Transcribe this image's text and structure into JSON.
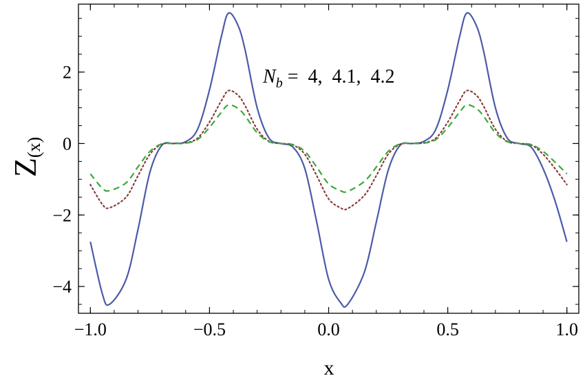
{
  "chart_data": {
    "type": "line",
    "xlabel": "x",
    "ylabel": "Z",
    "ylabel_sub": "(x)",
    "xlim": [
      -1.05,
      1.05
    ],
    "ylim": [
      -4.75,
      3.9
    ],
    "x_ticks": [
      -1.0,
      -0.5,
      0.0,
      0.5,
      1.0
    ],
    "x_tick_labels": [
      "−1.0",
      "−0.5",
      "0.0",
      "0.5",
      "1.0"
    ],
    "y_ticks": [
      -4,
      -2,
      0,
      2
    ],
    "y_tick_labels": [
      "−4",
      "−2",
      "0",
      "2"
    ],
    "annotation": {
      "symbol": "N",
      "subscript": "b",
      "text": " =  4,  4.1,  4.2"
    },
    "grid": false,
    "series": [
      {
        "style": "solid",
        "color": "#4a5aa8",
        "x": [
          -1.0,
          -0.95,
          -0.92,
          -0.85,
          -0.8,
          -0.75,
          -0.7,
          -0.65,
          -0.6,
          -0.55,
          -0.5,
          -0.45,
          -0.42,
          -0.38,
          -0.35,
          -0.3,
          -0.25,
          -0.2,
          -0.15,
          -0.1,
          -0.05,
          0.0,
          0.05,
          0.08,
          0.15,
          0.2,
          0.25,
          0.3,
          0.35,
          0.4,
          0.45,
          0.5,
          0.55,
          0.58,
          0.62,
          0.65,
          0.7,
          0.75,
          0.8,
          0.85,
          0.9,
          0.95,
          1.0
        ],
        "y": [
          -2.75,
          -4.2,
          -4.5,
          -3.8,
          -2.4,
          -0.8,
          -0.05,
          0.0,
          0.05,
          0.4,
          1.5,
          3.0,
          3.65,
          3.3,
          2.6,
          1.0,
          0.15,
          0.0,
          -0.1,
          -0.7,
          -2.2,
          -3.8,
          -4.45,
          -4.5,
          -3.6,
          -2.2,
          -0.75,
          -0.05,
          0.0,
          0.06,
          0.4,
          1.5,
          3.0,
          3.65,
          3.3,
          2.6,
          1.0,
          0.15,
          0.0,
          -0.1,
          -0.7,
          -1.6,
          -2.75
        ]
      },
      {
        "style": "dotted",
        "color": "#8b3a3a",
        "x": [
          -1.0,
          -0.95,
          -0.92,
          -0.85,
          -0.8,
          -0.75,
          -0.7,
          -0.65,
          -0.6,
          -0.55,
          -0.5,
          -0.45,
          -0.42,
          -0.38,
          -0.35,
          -0.3,
          -0.25,
          -0.2,
          -0.15,
          -0.1,
          -0.05,
          0.0,
          0.05,
          0.08,
          0.15,
          0.2,
          0.25,
          0.3,
          0.35,
          0.4,
          0.45,
          0.5,
          0.55,
          0.58,
          0.62,
          0.65,
          0.7,
          0.75,
          0.8,
          0.85,
          0.9,
          0.95,
          1.0
        ],
        "y": [
          -1.15,
          -1.7,
          -1.8,
          -1.5,
          -0.9,
          -0.3,
          -0.02,
          0.0,
          0.02,
          0.15,
          0.6,
          1.2,
          1.48,
          1.35,
          1.05,
          0.4,
          0.06,
          0.0,
          -0.04,
          -0.3,
          -0.9,
          -1.55,
          -1.8,
          -1.82,
          -1.45,
          -0.9,
          -0.3,
          -0.02,
          0.0,
          0.02,
          0.15,
          0.6,
          1.2,
          1.48,
          1.35,
          1.05,
          0.4,
          0.06,
          0.0,
          -0.04,
          -0.3,
          -0.7,
          -1.15
        ]
      },
      {
        "style": "dashed",
        "color": "#3aa83a",
        "x": [
          -1.0,
          -0.95,
          -0.92,
          -0.85,
          -0.8,
          -0.75,
          -0.7,
          -0.65,
          -0.6,
          -0.55,
          -0.5,
          -0.45,
          -0.42,
          -0.38,
          -0.35,
          -0.3,
          -0.25,
          -0.2,
          -0.15,
          -0.1,
          -0.05,
          0.0,
          0.05,
          0.08,
          0.15,
          0.2,
          0.25,
          0.3,
          0.35,
          0.4,
          0.45,
          0.5,
          0.55,
          0.58,
          0.62,
          0.65,
          0.7,
          0.75,
          0.8,
          0.85,
          0.9,
          0.95,
          1.0
        ],
        "y": [
          -0.85,
          -1.25,
          -1.32,
          -1.1,
          -0.65,
          -0.22,
          -0.01,
          0.0,
          0.01,
          0.11,
          0.45,
          0.88,
          1.08,
          0.98,
          0.77,
          0.3,
          0.05,
          0.0,
          -0.03,
          -0.22,
          -0.66,
          -1.13,
          -1.32,
          -1.34,
          -1.06,
          -0.66,
          -0.22,
          -0.01,
          0.0,
          0.01,
          0.11,
          0.45,
          0.88,
          1.08,
          0.98,
          0.77,
          0.3,
          0.05,
          0.0,
          -0.03,
          -0.22,
          -0.52,
          -0.85
        ]
      }
    ]
  }
}
